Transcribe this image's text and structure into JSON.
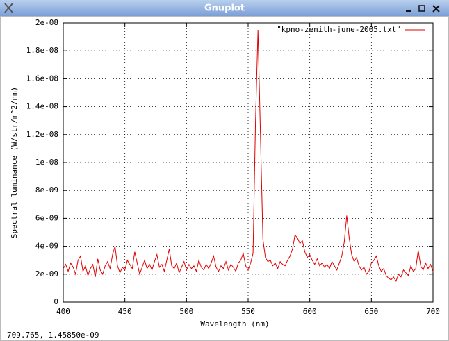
{
  "window": {
    "title": "Gnuplot",
    "status": "709.765,  1.45850e-09"
  },
  "chart_data": {
    "type": "line",
    "x_label": "Wavelength (nm)",
    "y_label": "Spectral luminance (W/str/m^2/nm)",
    "x": [
      400,
      402,
      404,
      406,
      408,
      410,
      412,
      414,
      416,
      418,
      420,
      422,
      424,
      426,
      428,
      430,
      432,
      434,
      436,
      438,
      440,
      442,
      444,
      446,
      448,
      450,
      452,
      454,
      456,
      458,
      460,
      462,
      464,
      466,
      468,
      470,
      472,
      474,
      476,
      478,
      480,
      482,
      484,
      486,
      488,
      490,
      492,
      494,
      496,
      498,
      500,
      502,
      504,
      506,
      508,
      510,
      512,
      514,
      516,
      518,
      520,
      522,
      524,
      526,
      528,
      530,
      532,
      534,
      536,
      538,
      540,
      542,
      544,
      546,
      548,
      550,
      552,
      554,
      556,
      558,
      560,
      562,
      564,
      566,
      568,
      570,
      572,
      574,
      576,
      578,
      580,
      582,
      584,
      586,
      588,
      590,
      592,
      594,
      596,
      598,
      600,
      602,
      604,
      606,
      608,
      610,
      612,
      614,
      616,
      618,
      620,
      622,
      624,
      626,
      628,
      630,
      632,
      634,
      636,
      638,
      640,
      642,
      644,
      646,
      648,
      650,
      652,
      654,
      656,
      658,
      660,
      662,
      664,
      666,
      668,
      670,
      672,
      674,
      676,
      678,
      680,
      682,
      684,
      686,
      688,
      690,
      692,
      694,
      696,
      698,
      700
    ],
    "series": [
      {
        "name": "\"kpno-zenith-june-2005.txt\"",
        "color": "#e00000",
        "values": [
          2.4e-09,
          2.7e-09,
          2.2e-09,
          2.8e-09,
          2.5e-09,
          2e-09,
          3e-09,
          3.3e-09,
          2.2e-09,
          2.6e-09,
          1.9e-09,
          2.4e-09,
          2.7e-09,
          1.8e-09,
          3.1e-09,
          2.3e-09,
          2e-09,
          2.6e-09,
          2.9e-09,
          2.4e-09,
          3.4e-09,
          4e-09,
          2.6e-09,
          2.1e-09,
          2.5e-09,
          2.3e-09,
          3e-09,
          2.7e-09,
          2.4e-09,
          3.6e-09,
          2.8e-09,
          2e-09,
          2.5e-09,
          3e-09,
          2.4e-09,
          2.7e-09,
          2.3e-09,
          2.9e-09,
          3.4e-09,
          2.5e-09,
          2.7e-09,
          2.2e-09,
          3e-09,
          3.8e-09,
          2.6e-09,
          2.4e-09,
          2.8e-09,
          2.1e-09,
          2.5e-09,
          2.9e-09,
          2.3e-09,
          2.7e-09,
          2.4e-09,
          2.6e-09,
          2.2e-09,
          3e-09,
          2.5e-09,
          2.3e-09,
          2.7e-09,
          2.4e-09,
          2.8e-09,
          3.3e-09,
          2.5e-09,
          2.2e-09,
          2.6e-09,
          2.4e-09,
          2.9e-09,
          2.3e-09,
          2.7e-09,
          2.5e-09,
          2.2e-09,
          2.8e-09,
          3e-09,
          3.5e-09,
          2.6e-09,
          2.3e-09,
          2.8e-09,
          3.5e-09,
          1.3e-08,
          1.95e-08,
          1.2e-08,
          4.5e-09,
          3.2e-09,
          2.9e-09,
          3e-09,
          2.6e-09,
          2.8e-09,
          2.4e-09,
          2.9e-09,
          2.7e-09,
          2.6e-09,
          3e-09,
          3.3e-09,
          3.8e-09,
          4.8e-09,
          4.6e-09,
          4.2e-09,
          4.4e-09,
          3.6e-09,
          3.2e-09,
          3.4e-09,
          3e-09,
          2.7e-09,
          3.1e-09,
          2.6e-09,
          2.8e-09,
          2.5e-09,
          2.7e-09,
          2.4e-09,
          2.9e-09,
          2.6e-09,
          2.3e-09,
          2.8e-09,
          3.3e-09,
          4.3e-09,
          6.2e-09,
          4.6e-09,
          3.4e-09,
          2.9e-09,
          3.2e-09,
          2.6e-09,
          2.3e-09,
          2.5e-09,
          2e-09,
          2.2e-09,
          2.8e-09,
          3e-09,
          3.3e-09,
          2.6e-09,
          2.2e-09,
          2.4e-09,
          1.9e-09,
          1.7e-09,
          1.6e-09,
          1.8e-09,
          1.5e-09,
          2e-09,
          1.8e-09,
          2.3e-09,
          2.1e-09,
          1.9e-09,
          2.6e-09,
          2.2e-09,
          2.4e-09,
          3.7e-09,
          2.6e-09,
          2.3e-09,
          2.8e-09,
          2.4e-09,
          2.7e-09,
          2.2e-09
        ]
      }
    ],
    "xlim": [
      400,
      700
    ],
    "xticks": [
      400,
      450,
      500,
      550,
      600,
      650,
      700
    ],
    "ylim": [
      0,
      2e-08
    ],
    "yticks": [
      0,
      {
        "value": 2e-09,
        "label": "2e-09"
      },
      {
        "value": 4e-09,
        "label": "4e-09"
      },
      {
        "value": 6e-09,
        "label": "6e-09"
      },
      {
        "value": 8e-09,
        "label": "8e-09"
      },
      {
        "value": 1e-08,
        "label": "1e-08"
      },
      {
        "value": 1.2e-08,
        "label": "1.2e-08"
      },
      {
        "value": 1.4e-08,
        "label": "1.4e-08"
      },
      {
        "value": 1.6e-08,
        "label": "1.6e-08"
      },
      {
        "value": 1.8e-08,
        "label": "1.8e-08"
      },
      {
        "value": 2e-08,
        "label": "2e-08"
      }
    ],
    "grid": true,
    "legend": "top-right"
  }
}
